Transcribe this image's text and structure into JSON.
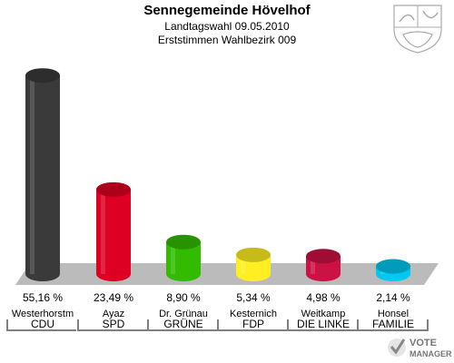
{
  "header": {
    "title": "Sennegemeinde Hövelhof",
    "subtitle": "Landtagswahl 09.05.2010",
    "subtitle2": "Erststimmen Wahlbezirk 009"
  },
  "logo": {
    "line1": "VOTE",
    "line2": "MANAGER",
    "icon": "vote-manager-check-logo"
  },
  "crest": {
    "icon": "nrw-coat-of-arms-icon"
  },
  "colors": {
    "CDU": "#3a3a3a",
    "SPD": "#dd0022",
    "GRÜNE": "#33bb00",
    "FDP": "#ffee22",
    "DIE LINKE": "#cc1144",
    "FAMILIE": "#00c8f0"
  },
  "chart_data": {
    "type": "bar",
    "title": "Sennegemeinde Hövelhof",
    "ylim": [
      0,
      60
    ],
    "categories": [
      "CDU",
      "SPD",
      "GRÜNE",
      "FDP",
      "DIE LINKE",
      "FAMILIE"
    ],
    "candidates": [
      "Westerhorstm",
      "Ayaz",
      "Dr. Grünau",
      "Kesternich",
      "Weitkamp",
      "Honsel"
    ],
    "values": [
      55.16,
      23.49,
      8.9,
      5.34,
      4.98,
      2.14
    ],
    "value_labels": [
      "55,16 %",
      "23,49 %",
      "8,90 %",
      "5,34 %",
      "4,98 %",
      "2,14 %"
    ]
  }
}
